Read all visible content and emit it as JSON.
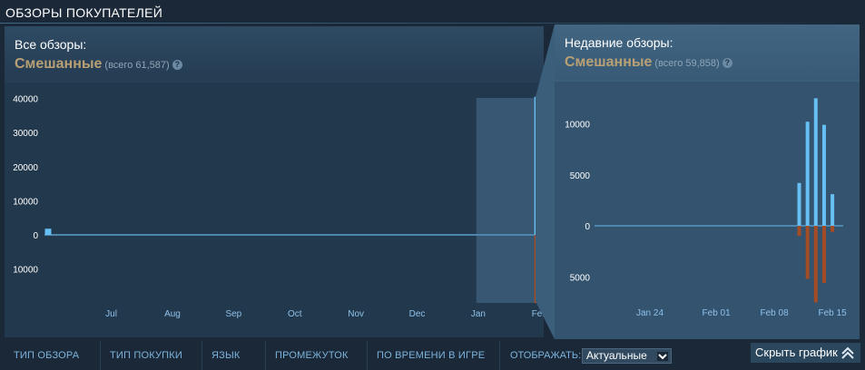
{
  "section_title": "ОБЗОРЫ ПОКУПАТЕЛЕЙ",
  "all_reviews": {
    "label": "Все обзоры:",
    "rating": "Смешанные",
    "total": "(всего 61,587)",
    "help_icon": "?"
  },
  "recent_reviews": {
    "label": "Недавние обзоры:",
    "rating": "Смешанные",
    "total": "(всего 59,858)",
    "help_icon": "?"
  },
  "colors": {
    "positive": "#66c0f4",
    "negative": "#a34c25",
    "rating": "#b9a074",
    "axis_label": "#8fc1ea",
    "zero_line": "#4f86b0"
  },
  "toolbar": {
    "review_type": "ТИП ОБЗОРА",
    "purchase_type": "ТИП ПОКУПКИ",
    "language": "ЯЗЫК",
    "period": "ПРОМЕЖУТОК",
    "playtime": "ПО ВРЕМЕНИ В ИГРЕ",
    "display_label": "ОТОБРАЖАТЬ:",
    "display_value": "Актуальные",
    "hide_graph": "Скрыть график",
    "hide_icon": "double-chevron-up-icon"
  },
  "chart_data": [
    {
      "type": "bar",
      "x_ticks": [
        "Jul",
        "Aug",
        "Sep",
        "Oct",
        "Nov",
        "Dec",
        "Jan",
        "Feb"
      ],
      "y_tick_labels": [
        "40000",
        "30000",
        "20000",
        "10000",
        "0",
        "10000"
      ],
      "y_tick_values": [
        40000,
        30000,
        20000,
        10000,
        0,
        -10000
      ],
      "ylim": [
        -20000,
        42000
      ],
      "highlighted_range": [
        "Jan 15",
        "Feb 15"
      ],
      "bars": [
        {
          "x": "Jun 15",
          "positive": 1800,
          "negative": 0
        },
        {
          "x": "Feb 15",
          "positive": 40500,
          "negative": 20000
        }
      ]
    },
    {
      "type": "bar",
      "x_ticks": [
        "Jan 24",
        "Feb 01",
        "Feb 08",
        "Feb 15"
      ],
      "y_tick_labels": [
        "10000",
        "5000",
        "0",
        "5000"
      ],
      "y_tick_values": [
        10000,
        5000,
        0,
        -5000
      ],
      "ylim": [
        -7500,
        12500
      ],
      "bars": [
        {
          "x": "Feb 11",
          "positive": 4200,
          "negative": 1000
        },
        {
          "x": "Feb 12",
          "positive": 10200,
          "negative": 5200
        },
        {
          "x": "Feb 13",
          "positive": 12500,
          "negative": 7500
        },
        {
          "x": "Feb 14",
          "positive": 9900,
          "negative": 5600
        },
        {
          "x": "Feb 15",
          "positive": 3100,
          "negative": 600
        }
      ]
    }
  ]
}
